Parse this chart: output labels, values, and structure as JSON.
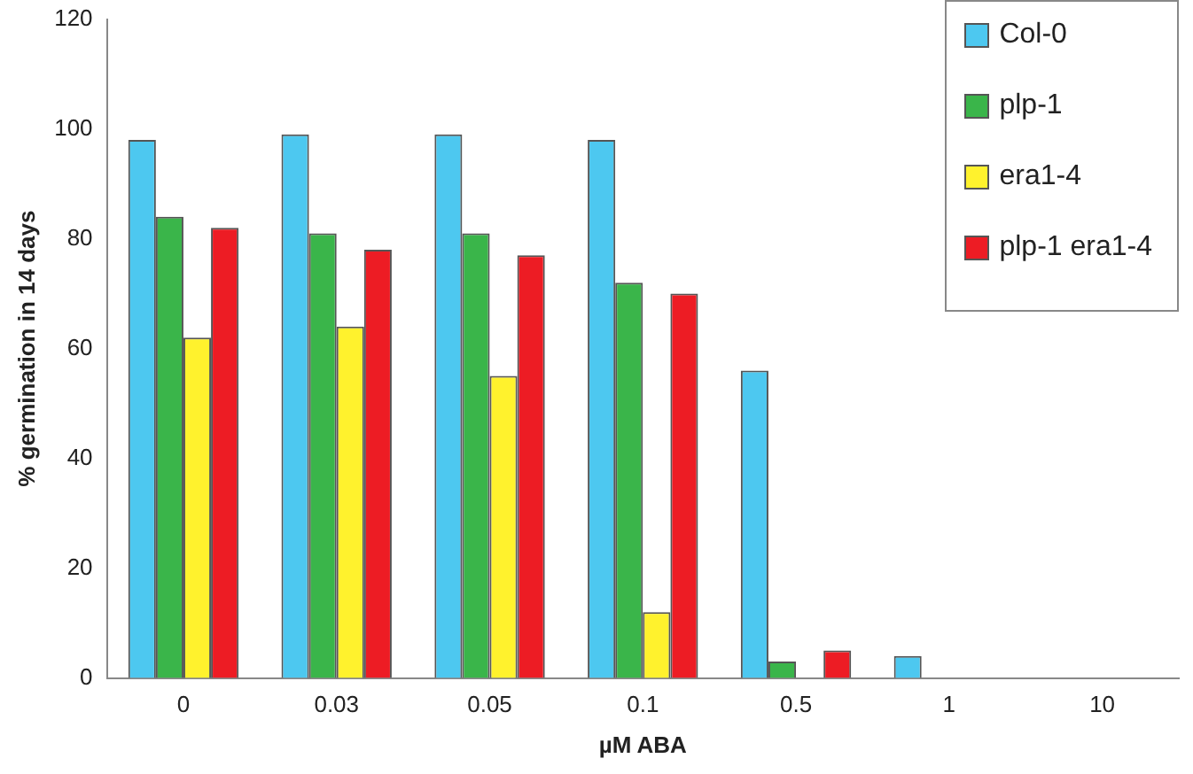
{
  "chart_data": {
    "type": "bar",
    "xlabel": "µM ABA",
    "ylabel": "% germination in 14 days",
    "categories": [
      "0",
      "0.03",
      "0.05",
      "0.1",
      "0.5",
      "1",
      "10"
    ],
    "series": [
      {
        "name": "Col-0",
        "color": "#4dc8f0",
        "values": [
          98,
          99,
          99,
          98,
          56,
          4,
          0
        ]
      },
      {
        "name": "plp-1",
        "color": "#3ab54a",
        "values": [
          84,
          81,
          81,
          72,
          3,
          0,
          0
        ]
      },
      {
        "name": "era1-4",
        "color": "#fff22d",
        "values": [
          62,
          64,
          55,
          12,
          0,
          0,
          0
        ]
      },
      {
        "name": "plp-1 era1-4",
        "color": "#ed1c24",
        "values": [
          82,
          78,
          77,
          70,
          5,
          0,
          0
        ]
      }
    ],
    "ylim": [
      0,
      120
    ],
    "yticks": [
      0,
      20,
      40,
      60,
      80,
      100,
      120
    ],
    "grid": false,
    "legend": "top right"
  }
}
